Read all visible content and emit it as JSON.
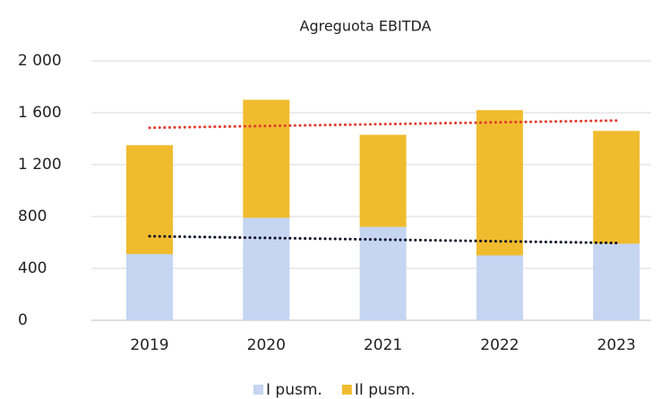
{
  "chart_data": {
    "type": "stacked_bar",
    "title": "Agreguota EBITDA",
    "categories": [
      "2019",
      "2020",
      "2021",
      "2022",
      "2023"
    ],
    "series": [
      {
        "name": "I pusm.",
        "color": "#c5d5f2",
        "values": [
          510,
          790,
          720,
          500,
          590
        ]
      },
      {
        "name": "II pusm.",
        "color": "#f0bc2e",
        "values": [
          840,
          910,
          710,
          1120,
          870
        ]
      }
    ],
    "ylim": [
      0,
      2000
    ],
    "yticks": [
      0,
      400,
      800,
      {
        "value": 1200,
        "label": "1 200"
      },
      {
        "value": 1600,
        "label": "1 600"
      },
      {
        "value": 2000,
        "label": "2 000"
      }
    ],
    "grid": true,
    "legend": "bottom",
    "trendlines": [
      {
        "series": "total",
        "color": "#e23b2e"
      },
      {
        "series": 0,
        "color": "#0b0b25"
      }
    ]
  }
}
